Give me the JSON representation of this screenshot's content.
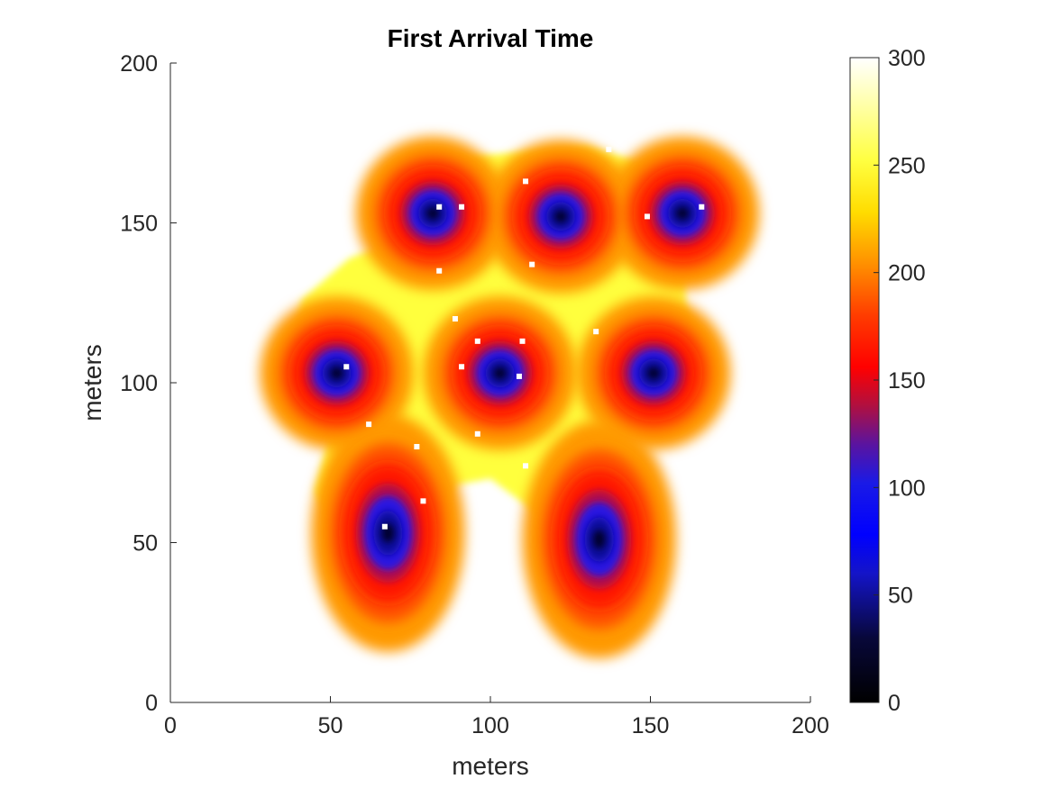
{
  "chart_data": {
    "type": "heatmap",
    "title": "First Arrival Time",
    "xlabel": "meters",
    "ylabel": "meters",
    "xlim": [
      0,
      200
    ],
    "ylim": [
      0,
      200
    ],
    "xticks": [
      "0",
      "50",
      "100",
      "150",
      "200"
    ],
    "yticks": [
      "0",
      "50",
      "100",
      "150",
      "200"
    ],
    "colorbar": {
      "colormap": "hot-blue",
      "range": [
        0,
        300
      ],
      "ticks": [
        "0",
        "50",
        "100",
        "150",
        "200",
        "250",
        "300"
      ]
    },
    "grid": false,
    "sources": [
      {
        "x": 52,
        "y": 103
      },
      {
        "x": 68,
        "y": 53
      },
      {
        "x": 82,
        "y": 153
      },
      {
        "x": 103,
        "y": 103
      },
      {
        "x": 122,
        "y": 152
      },
      {
        "x": 134,
        "y": 51
      },
      {
        "x": 151,
        "y": 103
      },
      {
        "x": 160,
        "y": 153
      }
    ],
    "footprint": [
      {
        "x": 85,
        "y": 170
      },
      {
        "x": 130,
        "y": 174
      },
      {
        "x": 154,
        "y": 167
      },
      {
        "x": 176,
        "y": 153
      },
      {
        "x": 161,
        "y": 139
      },
      {
        "x": 161,
        "y": 125
      },
      {
        "x": 168,
        "y": 106
      },
      {
        "x": 156,
        "y": 91
      },
      {
        "x": 140,
        "y": 82
      },
      {
        "x": 148,
        "y": 57
      },
      {
        "x": 129,
        "y": 36
      },
      {
        "x": 112,
        "y": 61
      },
      {
        "x": 100,
        "y": 70
      },
      {
        "x": 89,
        "y": 68
      },
      {
        "x": 78,
        "y": 43
      },
      {
        "x": 59,
        "y": 36
      },
      {
        "x": 45,
        "y": 66
      },
      {
        "x": 51,
        "y": 88
      },
      {
        "x": 37,
        "y": 105
      },
      {
        "x": 41,
        "y": 126
      },
      {
        "x": 56,
        "y": 139
      },
      {
        "x": 69,
        "y": 144
      },
      {
        "x": 69,
        "y": 164
      }
    ],
    "markers": [
      {
        "x": 84,
        "y": 155
      },
      {
        "x": 91,
        "y": 155
      },
      {
        "x": 111,
        "y": 163
      },
      {
        "x": 137,
        "y": 173
      },
      {
        "x": 149,
        "y": 152
      },
      {
        "x": 166,
        "y": 155
      },
      {
        "x": 113,
        "y": 137
      },
      {
        "x": 84,
        "y": 135
      },
      {
        "x": 89,
        "y": 120
      },
      {
        "x": 96,
        "y": 113
      },
      {
        "x": 110,
        "y": 113
      },
      {
        "x": 133,
        "y": 116
      },
      {
        "x": 55,
        "y": 105
      },
      {
        "x": 91,
        "y": 105
      },
      {
        "x": 109,
        "y": 102
      },
      {
        "x": 62,
        "y": 87
      },
      {
        "x": 77,
        "y": 80
      },
      {
        "x": 96,
        "y": 84
      },
      {
        "x": 111,
        "y": 74
      },
      {
        "x": 79,
        "y": 63
      },
      {
        "x": 67,
        "y": 55
      }
    ]
  }
}
